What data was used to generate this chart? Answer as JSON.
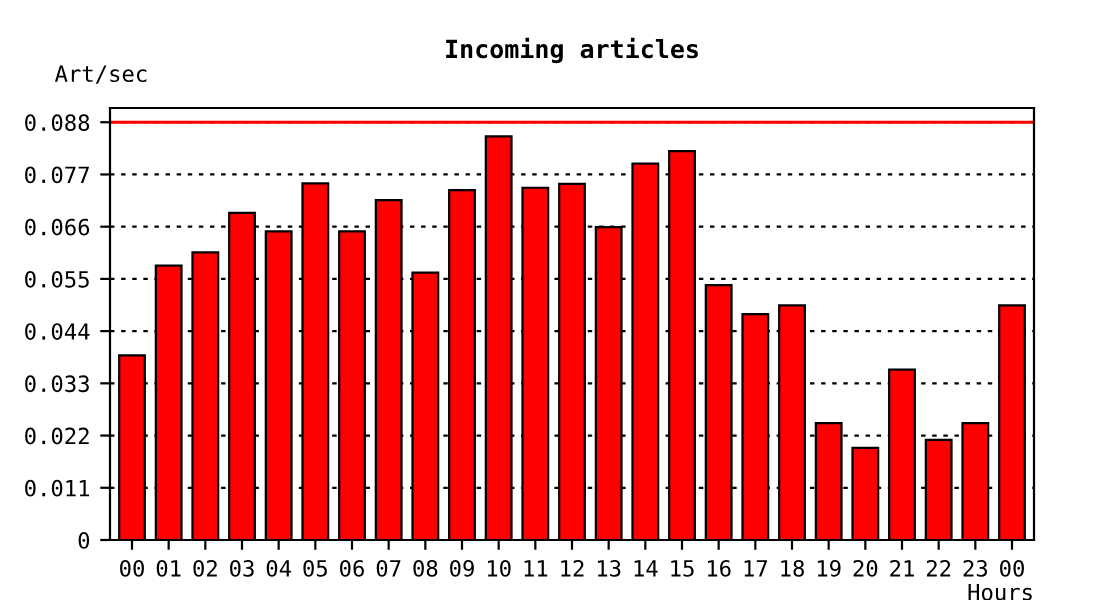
{
  "chart_data": {
    "type": "bar",
    "title": "Incoming articles",
    "ylabel": "Art/sec",
    "xlabel": "Hours",
    "categories": [
      "00",
      "01",
      "02",
      "03",
      "04",
      "05",
      "06",
      "07",
      "08",
      "09",
      "10",
      "11",
      "12",
      "13",
      "14",
      "15",
      "16",
      "17",
      "18",
      "19",
      "20",
      "21",
      "22",
      "23",
      "00"
    ],
    "values": [
      0.0389,
      0.0578,
      0.0606,
      0.0689,
      0.065,
      0.0751,
      0.065,
      0.0716,
      0.0563,
      0.0737,
      0.085,
      0.0742,
      0.075,
      0.0659,
      0.0793,
      0.0819,
      0.0537,
      0.0476,
      0.0494,
      0.0246,
      0.0194,
      0.0359,
      0.0211,
      0.0246,
      0.0494
    ],
    "color": "#ff0000",
    "ylim": [
      0,
      0.091
    ],
    "yticks": [
      0,
      0.011,
      0.022,
      0.033,
      0.044,
      0.055,
      0.066,
      0.077,
      0.088
    ],
    "grid": "y",
    "ref_lines": [
      {
        "axis": "y",
        "value": 0.088,
        "color": "#ff0000",
        "line_style": "solid"
      }
    ]
  }
}
